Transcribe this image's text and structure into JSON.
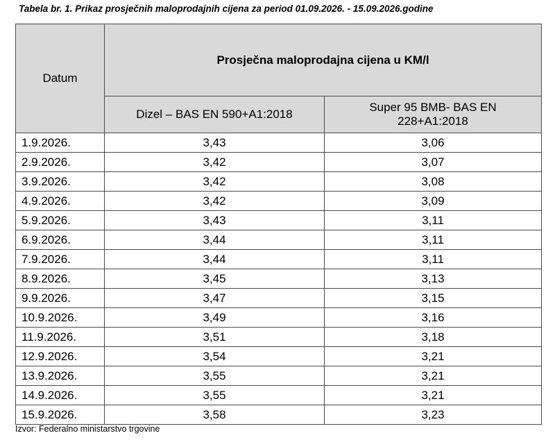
{
  "caption": "Tabela br. 1. Prikaz prosječnih maloprodajnih cijena za period 01.09.2026. - 15.09.2026.godine",
  "header": {
    "date_label": "Datum",
    "main_label": "Prosječna maloprodajna cijena u KM/l",
    "col1": "Dizel – BAS EN 590+A1:2018",
    "col2_line1": "Super 95 BMB- BAS EN",
    "col2_line2": "228+A1:2018"
  },
  "rows": [
    {
      "date": "1.9.2026.",
      "diesel": "3,43",
      "super95": "3,06"
    },
    {
      "date": "2.9.2026.",
      "diesel": "3,42",
      "super95": "3,07"
    },
    {
      "date": "3.9.2026.",
      "diesel": "3,42",
      "super95": "3,08"
    },
    {
      "date": "4.9.2026.",
      "diesel": "3,42",
      "super95": "3,09"
    },
    {
      "date": "5.9.2026.",
      "diesel": "3,43",
      "super95": "3,11"
    },
    {
      "date": "6.9.2026.",
      "diesel": "3,44",
      "super95": "3,11"
    },
    {
      "date": "7.9.2026.",
      "diesel": "3,44",
      "super95": "3,11"
    },
    {
      "date": "8.9.2026.",
      "diesel": "3,45",
      "super95": "3,13"
    },
    {
      "date": "9.9.2026.",
      "diesel": "3,47",
      "super95": "3,15"
    },
    {
      "date": "10.9.2026.",
      "diesel": "3,49",
      "super95": "3,16"
    },
    {
      "date": "11.9.2026.",
      "diesel": "3,51",
      "super95": "3,18"
    },
    {
      "date": "12.9.2026.",
      "diesel": "3,54",
      "super95": "3,21"
    },
    {
      "date": "13.9.2026.",
      "diesel": "3,55",
      "super95": "3,21"
    },
    {
      "date": "14.9.2026.",
      "diesel": "3,55",
      "super95": "3,21"
    },
    {
      "date": "15.9.2026.",
      "diesel": "3,58",
      "super95": "3,23"
    }
  ],
  "source": "Izvor: Federalno ministarstvo trgovine"
}
